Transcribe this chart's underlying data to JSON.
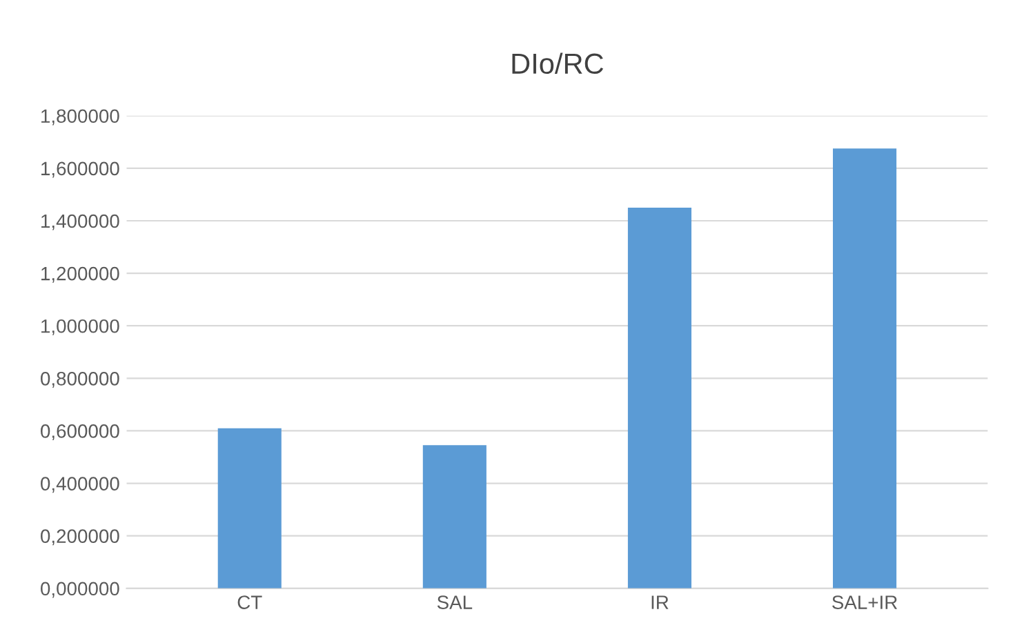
{
  "chart_data": {
    "type": "bar",
    "title": "DIo/RC",
    "categories": [
      "CT",
      "SAL",
      "IR",
      "SAL+IR"
    ],
    "values": [
      0.61,
      0.545,
      1.45,
      1.675
    ],
    "color": "#5b9bd5",
    "ylim": [
      0,
      1.8
    ],
    "yticks": [
      {
        "value": 0,
        "label": "0,000000"
      },
      {
        "value": 0.2,
        "label": "0,200000"
      },
      {
        "value": 0.4,
        "label": "0,400000"
      },
      {
        "value": 0.6,
        "label": "0,600000"
      },
      {
        "value": 0.8,
        "label": "0,800000"
      },
      {
        "value": 1.0,
        "label": "1,000000"
      },
      {
        "value": 1.2,
        "label": "1,200000"
      },
      {
        "value": 1.4,
        "label": "1,400000"
      },
      {
        "value": 1.6,
        "label": "1,600000"
      },
      {
        "value": 1.8,
        "label": "1,800000"
      }
    ],
    "grid": "y",
    "legend": false
  }
}
